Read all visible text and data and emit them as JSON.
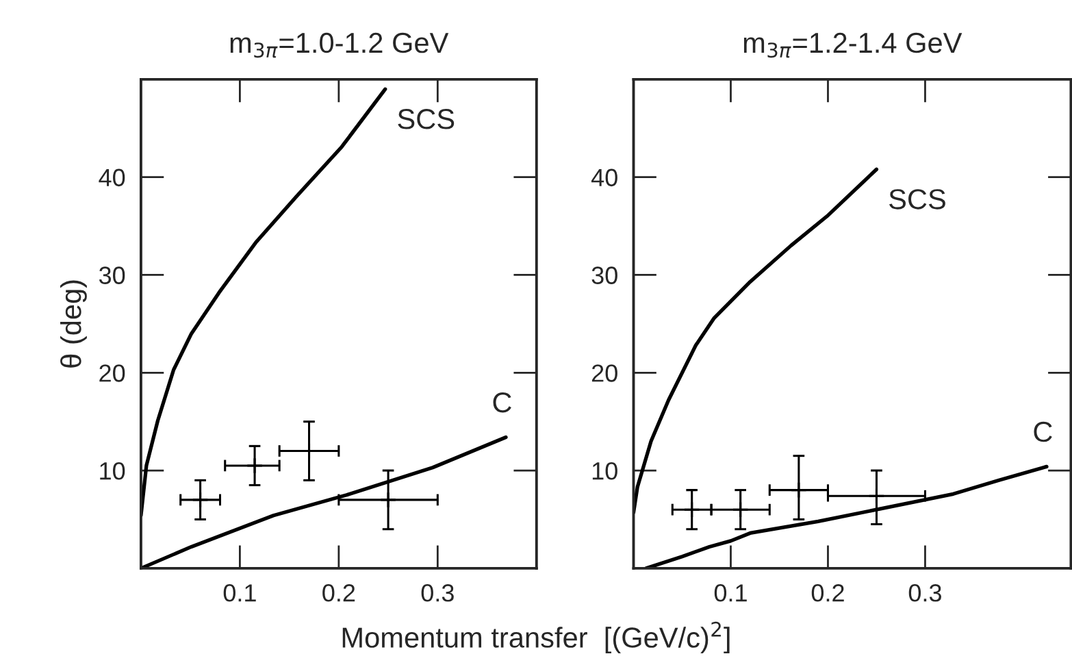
{
  "chart_data": [
    {
      "type": "line",
      "title": "m$_{3π}$=1.0-1.2 GeV",
      "xlabel": "Momentum transfer  [(GeV/c)$^{2}$]",
      "ylabel": "θ (deg)",
      "xlim": [
        0,
        0.4
      ],
      "ylim": [
        0,
        50
      ],
      "xticks": [
        0.1,
        0.2,
        0.3
      ],
      "yticks": [
        10,
        20,
        30,
        40
      ],
      "grid": false,
      "legend": false,
      "series": [
        {
          "type": "line",
          "name": "SCS",
          "color": "#000000",
          "x": [
            0,
            0.0055,
            0.017,
            0.033,
            0.051,
            0.079,
            0.116,
            0.157,
            0.203,
            0.247
          ],
          "values": [
            5.4,
            10.5,
            15.1,
            20.3,
            24,
            28.2,
            33.3,
            38,
            43.1,
            49
          ]
        },
        {
          "type": "line",
          "name": "C",
          "color": "#000000",
          "x": [
            0,
            0.051,
            0.134,
            0.208,
            0.295,
            0.369
          ],
          "values": [
            0,
            2.2,
            5.4,
            7.5,
            10.3,
            13.4
          ]
        },
        {
          "type": "scatter",
          "marker": "cross",
          "color": "#000000",
          "x": [
            0.06,
            0.115,
            0.17,
            0.25
          ],
          "values": [
            7,
            10.5,
            12,
            7
          ],
          "errors": [
            [
              5,
              9
            ],
            [
              8.5,
              12.5
            ],
            [
              9,
              15
            ],
            [
              4,
              10
            ]
          ],
          "xerrors": [
            [
              0.04,
              0.08
            ],
            [
              0.085,
              0.14
            ],
            [
              0.14,
              0.2
            ],
            [
              0.2,
              0.3
            ]
          ]
        }
      ]
    },
    {
      "type": "line",
      "title": "m$_{3π}$=1.2-1.4 GeV",
      "xlim": [
        0,
        0.45
      ],
      "ylim": [
        0,
        50
      ],
      "xticks": [
        0.1,
        0.2,
        0.3
      ],
      "yticks": [
        10,
        20,
        30,
        40
      ],
      "grid": false,
      "legend": false,
      "series": [
        {
          "type": "line",
          "name": "SCS",
          "color": "#000000",
          "x": [
            0,
            0.004,
            0.018,
            0.036,
            0.064,
            0.083,
            0.12,
            0.162,
            0.199,
            0.25
          ],
          "values": [
            5.7,
            8.3,
            13,
            17.2,
            22.8,
            25.6,
            29.3,
            33,
            36,
            40.8
          ]
        },
        {
          "type": "line",
          "name": "C",
          "color": "#000000",
          "x": [
            0.013,
            0.05,
            0.078,
            0.1,
            0.12,
            0.19,
            0.25,
            0.329,
            0.376,
            0.425
          ],
          "values": [
            0,
            1.2,
            2.2,
            2.8,
            3.6,
            4.8,
            6,
            7.6,
            9,
            10.4
          ]
        },
        {
          "type": "scatter",
          "marker": "cross",
          "color": "#000000",
          "x": [
            0.06,
            0.11,
            0.17,
            0.25
          ],
          "values": [
            6,
            6,
            8,
            7.4
          ],
          "errors": [
            [
              4,
              8
            ],
            [
              4,
              8
            ],
            [
              5,
              11.5
            ],
            [
              4.5,
              10
            ]
          ],
          "xerrors": [
            [
              0.04,
              0.08
            ],
            [
              0.08,
              0.14
            ],
            [
              0.14,
              0.2
            ],
            [
              0.2,
              0.3
            ]
          ]
        }
      ]
    }
  ]
}
